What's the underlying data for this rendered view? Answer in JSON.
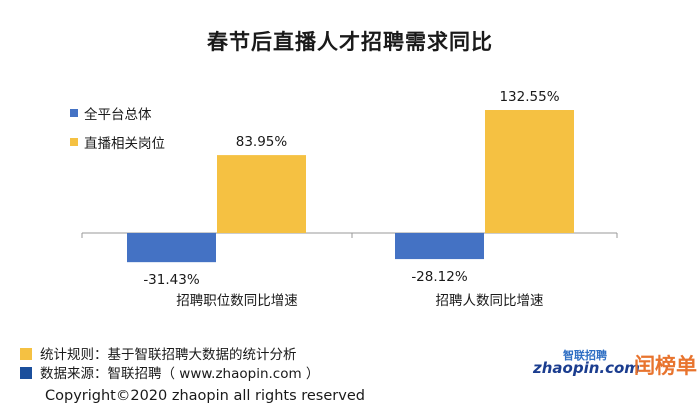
{
  "title": "春节后直播人才招聘需求同比",
  "chart_data": {
    "type": "bar",
    "title": "春节后直播人才招聘需求同比",
    "categories": [
      "招聘职位数同比增速",
      "招聘人数同比增速"
    ],
    "series": [
      {
        "name": "全平台总体",
        "values": [
          -31.43,
          -28.12
        ],
        "labels": [
          "-31.43%",
          "-28.12%"
        ],
        "color": "#4472c4"
      },
      {
        "name": "直播相关岗位",
        "values": [
          83.95,
          132.55
        ],
        "labels": [
          "83.95%",
          "132.55%"
        ],
        "color": "#f5c142"
      }
    ],
    "unit": "%",
    "ylim": [
      -40,
      140
    ],
    "grid": false,
    "legend": "top-left"
  },
  "notes": [
    {
      "text": "统计规则：基于智联招聘大数据的统计分析",
      "color": "#f5c142"
    },
    {
      "text": "数据来源：智联招聘（ www.zhaopin.com ）",
      "color": "#4472c4"
    }
  ],
  "copyright": "Copyright©2020 zhaopin all rights reserved",
  "logos": {
    "zhaopin_cn": "智联招聘",
    "zhaopin_en": "zhaopin.com",
    "shangbang": "闰榜单"
  }
}
